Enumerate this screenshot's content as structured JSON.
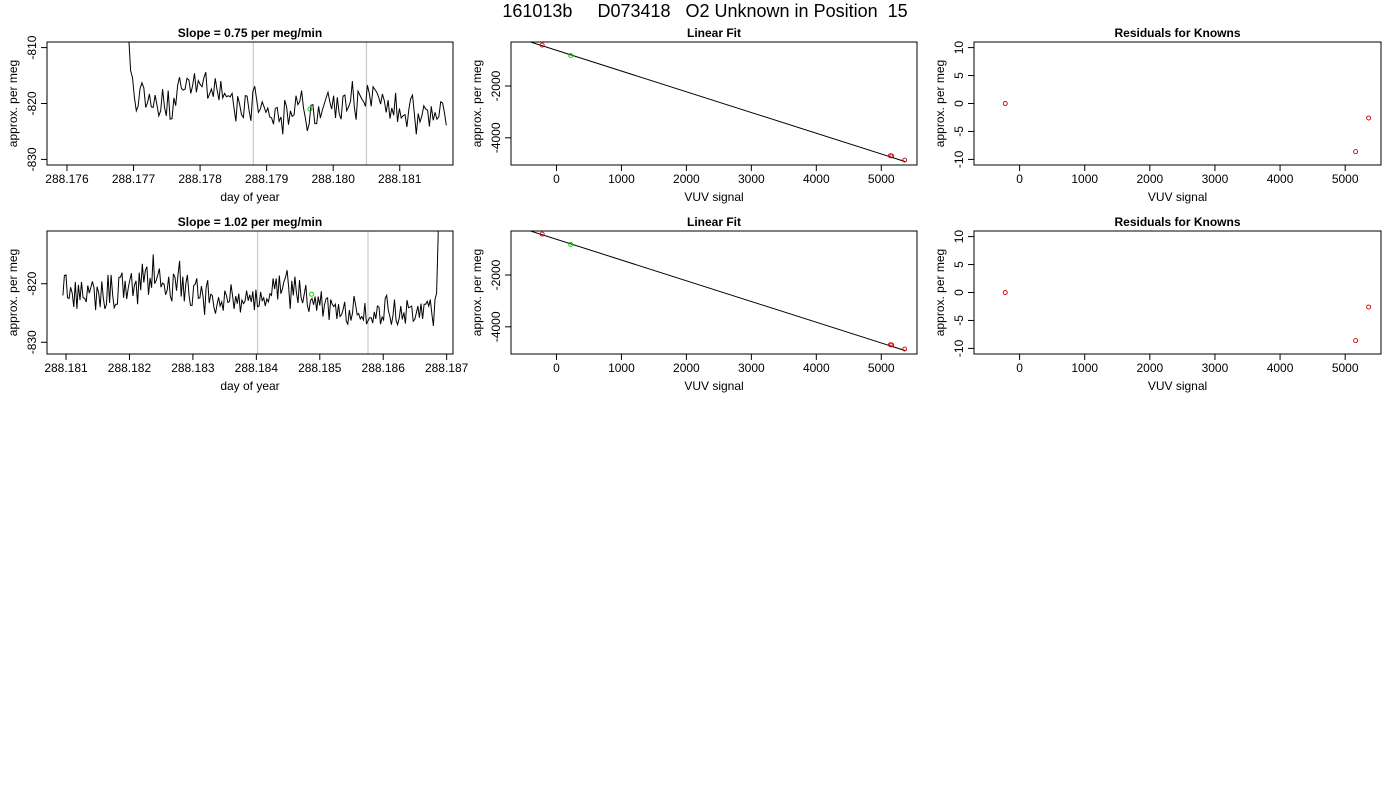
{
  "page": {
    "title": "161013b     D073418   O2 Unknown in Position  15"
  },
  "colors": {
    "axis": "#000000",
    "trace": "#000000",
    "fit_line": "#000000",
    "vline": "#c8c8c8",
    "known_marker": "#cc0000",
    "unknown_marker": "#00cc00"
  },
  "chart_data": [
    {
      "id": "trace1",
      "type": "line",
      "title": "Slope =  0.75  per meg/min",
      "xlabel": "day of year",
      "ylabel": "approx. per meg",
      "xlim": [
        288.1757,
        288.1818
      ],
      "ylim": [
        -831,
        -809
      ],
      "xticks": [
        288.176,
        288.177,
        288.178,
        288.179,
        288.18,
        288.181
      ],
      "xtick_labels": [
        "288.176",
        "288.177",
        "288.178",
        "288.179",
        "288.180",
        "288.181"
      ],
      "yticks": [
        -830,
        -820,
        -810
      ],
      "ytick_labels": [
        "-830",
        "-820",
        "-810"
      ],
      "vlines": [
        288.1788,
        288.1805
      ],
      "trace_x_start": 288.1769,
      "trace_x_end": 288.1817,
      "trace_y": [
        -790.0,
        -808.1,
        -814.1,
        -815.4,
        -818.9,
        -821.3,
        -820.5,
        -817.4,
        -816.3,
        -817.2,
        -820.7,
        -819.9,
        -818.3,
        -820.6,
        -820.7,
        -818.5,
        -820.2,
        -822.2,
        -821.3,
        -817.4,
        -820.7,
        -822.2,
        -817.7,
        -822.8,
        -822.7,
        -819.0,
        -820.4,
        -816.8,
        -815.3,
        -817.3,
        -817.6,
        -817.4,
        -815.5,
        -815.8,
        -818.2,
        -816.8,
        -814.6,
        -818.0,
        -815.9,
        -816.6,
        -817.0,
        -815.4,
        -814.4,
        -819.1,
        -818.3,
        -817.4,
        -818.8,
        -815.5,
        -817.6,
        -819.4,
        -816.0,
        -819.0,
        -818.2,
        -818.8,
        -818.6,
        -818.8,
        -818.2,
        -820.8,
        -823.2,
        -818.7,
        -820.1,
        -822.0,
        -822.5,
        -818.6,
        -818.7,
        -821.2,
        -823.1,
        -817.9,
        -816.9,
        -819.1,
        -821.6,
        -821.0,
        -819.7,
        -820.6,
        -821.6,
        -820.8,
        -822.4,
        -822.6,
        -823.7,
        -820.9,
        -820.7,
        -823.2,
        -822.4,
        -825.5,
        -819.4,
        -820.6,
        -823.8,
        -821.3,
        -822.3,
        -822.0,
        -818.6,
        -820.2,
        -819.6,
        -817.7,
        -820.8,
        -822.6,
        -824.9,
        -823.6,
        -820.3,
        -820.2,
        -823.6,
        -823.6,
        -820.5,
        -822.6,
        -821.2,
        -820.1,
        -819.0,
        -818.0,
        -819.7,
        -821.0,
        -818.6,
        -822.6,
        -818.9,
        -821.8,
        -822.8,
        -818.7,
        -818.5,
        -821.3,
        -820.6,
        -819.6,
        -816.0,
        -820.6,
        -822.9,
        -817.8,
        -818.5,
        -819.2,
        -819.7,
        -820.5,
        -816.7,
        -818.2,
        -820.5,
        -817.0,
        -817.5,
        -818.0,
        -818.9,
        -820.1,
        -818.3,
        -819.5,
        -821.6,
        -819.4,
        -822.7,
        -820.8,
        -822.1,
        -818.1,
        -823.3,
        -820.9,
        -822.6,
        -822.2,
        -822.0,
        -824.2,
        -821.1,
        -819.2,
        -818.5,
        -821.9,
        -825.5,
        -821.8,
        -823.3,
        -822.2,
        -820.4,
        -821.0,
        -821.2,
        -824.1,
        -820.5,
        -823.0,
        -821.6,
        -822.8,
        -822.4,
        -819.7,
        -819.9,
        -821.7,
        -823.9
      ],
      "markers": [
        {
          "x": 288.17965,
          "y": -821.0,
          "role": "unknown"
        }
      ]
    },
    {
      "id": "fit1",
      "type": "scatter",
      "title": "Linear Fit",
      "xlabel": "VUV signal",
      "ylabel": "approx. per meg",
      "xlim": [
        -700,
        5550
      ],
      "ylim": [
        -5050,
        -300
      ],
      "xticks": [
        0,
        1000,
        2000,
        3000,
        4000,
        5000
      ],
      "xtick_labels": [
        "0",
        "1000",
        "2000",
        "3000",
        "4000",
        "5000"
      ],
      "yticks": [
        -4000,
        -2000
      ],
      "ytick_labels": [
        "-4000",
        "-2000"
      ],
      "fit_line": {
        "x": [
          -500,
          5370
        ],
        "y": [
          -220,
          -4920
        ]
      },
      "points": [
        {
          "x": -220,
          "y": -420,
          "role": "known"
        },
        {
          "x": 220,
          "y": -820,
          "role": "unknown"
        },
        {
          "x": 5140,
          "y": -4690,
          "role": "known"
        },
        {
          "x": 5160,
          "y": -4700,
          "role": "known"
        },
        {
          "x": 5360,
          "y": -4860,
          "role": "known"
        }
      ]
    },
    {
      "id": "resid1",
      "type": "scatter",
      "title": "Residuals for Knowns",
      "xlabel": "VUV signal",
      "ylabel": "approx. per meg",
      "xlim": [
        -700,
        5550
      ],
      "ylim": [
        -11,
        11
      ],
      "xticks": [
        0,
        1000,
        2000,
        3000,
        4000,
        5000
      ],
      "xtick_labels": [
        "0",
        "1000",
        "2000",
        "3000",
        "4000",
        "5000"
      ],
      "yticks": [
        -10,
        -5,
        0,
        5,
        10
      ],
      "ytick_labels": [
        "-10",
        "-5",
        "0",
        "5",
        "10"
      ],
      "points": [
        {
          "x": -220,
          "y": 0.0,
          "role": "known"
        },
        {
          "x": 5160,
          "y": -8.6,
          "role": "known"
        },
        {
          "x": 5360,
          "y": -2.6,
          "role": "known"
        }
      ]
    },
    {
      "id": "trace2",
      "type": "line",
      "title": "Slope =  1.02  per meg/min",
      "xlabel": "day of year",
      "ylabel": "approx. per meg",
      "xlim": [
        288.1807,
        288.1871
      ],
      "ylim": [
        -832,
        -811
      ],
      "xticks": [
        288.181,
        288.182,
        288.183,
        288.184,
        288.185,
        288.186,
        288.187
      ],
      "xtick_labels": [
        "288.181",
        "288.182",
        "288.183",
        "288.184",
        "288.185",
        "288.186",
        "288.187"
      ],
      "yticks": [
        -830,
        -820
      ],
      "ytick_labels": [
        "-830",
        "-820"
      ],
      "vlines": [
        288.18402,
        288.18576
      ],
      "trace_x_start": 288.18095,
      "trace_x_end": 288.18689,
      "trace_y": [
        -822.0,
        -818.6,
        -818.5,
        -822.4,
        -822.5,
        -820.6,
        -821.6,
        -824.0,
        -819.7,
        -824.3,
        -820.2,
        -822.8,
        -819.7,
        -822.4,
        -822.5,
        -823.1,
        -820.3,
        -821.6,
        -820.6,
        -819.6,
        -820.7,
        -824.5,
        -820.5,
        -821.6,
        -824.0,
        -819.6,
        -822.4,
        -824.3,
        -823.5,
        -818.5,
        -823.3,
        -818.5,
        -822.0,
        -824.1,
        -823.5,
        -823.5,
        -818.9,
        -818.9,
        -818.1,
        -822.4,
        -819.5,
        -822.6,
        -820.7,
        -819.4,
        -818.2,
        -822.1,
        -820.2,
        -819.5,
        -823.5,
        -818.1,
        -821.1,
        -816.6,
        -819.8,
        -817.7,
        -817.1,
        -821.9,
        -819.0,
        -820.7,
        -815.0,
        -820.0,
        -819.4,
        -818.5,
        -817.4,
        -820.6,
        -819.9,
        -820.1,
        -821.9,
        -821.1,
        -818.8,
        -822.1,
        -823.0,
        -818.3,
        -818.9,
        -821.2,
        -818.3,
        -816.1,
        -822.2,
        -818.8,
        -823.0,
        -819.9,
        -818.5,
        -821.9,
        -823.7,
        -823.7,
        -820.3,
        -820.1,
        -819.1,
        -822.5,
        -822.4,
        -820.4,
        -822.1,
        -825.3,
        -820.7,
        -819.4,
        -823.3,
        -821.8,
        -822.0,
        -824.0,
        -825.1,
        -823.6,
        -822.3,
        -823.8,
        -823.1,
        -824.6,
        -821.2,
        -822.0,
        -823.2,
        -823.0,
        -820.1,
        -822.1,
        -824.3,
        -822.1,
        -823.4,
        -821.7,
        -824.9,
        -822.8,
        -823.4,
        -823.0,
        -821.2,
        -822.9,
        -821.9,
        -823.1,
        -821.3,
        -824.5,
        -821.0,
        -823.9,
        -823.8,
        -821.4,
        -822.9,
        -822.4,
        -823.8,
        -822.6,
        -823.1,
        -821.7,
        -822.0,
        -819.1,
        -820.9,
        -819.1,
        -822.7,
        -818.6,
        -821.7,
        -820.9,
        -819.6,
        -818.9,
        -817.7,
        -820.5,
        -824.3,
        -819.5,
        -822.0,
        -818.8,
        -821.5,
        -823.3,
        -819.4,
        -822.4,
        -823.3,
        -821.8,
        -820.2,
        -823.6,
        -824.8,
        -822.9,
        -822.5,
        -823.6,
        -822.2,
        -824.6,
        -822.2,
        -823.7,
        -821.3,
        -825.6,
        -823.6,
        -822.6,
        -822.4,
        -826.2,
        -822.7,
        -823.5,
        -823.9,
        -823.5,
        -826.0,
        -823.5,
        -825.6,
        -825.3,
        -824.4,
        -823.1,
        -826.4,
        -826.9,
        -824.5,
        -826.3,
        -825.0,
        -822.1,
        -823.6,
        -825.3,
        -825.1,
        -826.0,
        -825.6,
        -826.2,
        -823.3,
        -826.9,
        -826.3,
        -825.8,
        -825.8,
        -826.7,
        -824.8,
        -826.0,
        -823.8,
        -824.0,
        -826.9,
        -825.7,
        -826.2,
        -822.5,
        -822.0,
        -824.5,
        -825.6,
        -827.0,
        -825.4,
        -822.7,
        -826.3,
        -827.0,
        -825.9,
        -823.8,
        -826.1,
        -824.9,
        -826.8,
        -822.8,
        -824.1,
        -824.0,
        -823.8,
        -826.4,
        -826.1,
        -825.0,
        -823.8,
        -825.8,
        -823.4,
        -826.0,
        -823.5,
        -823.5,
        -823.0,
        -823.8,
        -822.7,
        -825.2,
        -827.2,
        -822.7,
        -821.6,
        -812.2,
        -796.0
      ],
      "markers": [
        {
          "x": 288.18487,
          "y": -821.8,
          "role": "unknown"
        }
      ]
    },
    {
      "id": "fit2",
      "type": "scatter",
      "title": "Linear Fit",
      "xlabel": "VUV signal",
      "ylabel": "approx. per meg",
      "xlim": [
        -700,
        5550
      ],
      "ylim": [
        -5050,
        -300
      ],
      "xticks": [
        0,
        1000,
        2000,
        3000,
        4000,
        5000
      ],
      "xtick_labels": [
        "0",
        "1000",
        "2000",
        "3000",
        "4000",
        "5000"
      ],
      "yticks": [
        -4000,
        -2000
      ],
      "ytick_labels": [
        "-4000",
        "-2000"
      ],
      "fit_line": {
        "x": [
          -500,
          5370
        ],
        "y": [
          -220,
          -4920
        ]
      },
      "points": [
        {
          "x": -220,
          "y": -420,
          "role": "known"
        },
        {
          "x": 220,
          "y": -820,
          "role": "unknown"
        },
        {
          "x": 5140,
          "y": -4690,
          "role": "known"
        },
        {
          "x": 5160,
          "y": -4700,
          "role": "known"
        },
        {
          "x": 5360,
          "y": -4860,
          "role": "known"
        }
      ]
    },
    {
      "id": "resid2",
      "type": "scatter",
      "title": "Residuals for Knowns",
      "xlabel": "VUV signal",
      "ylabel": "approx. per meg",
      "xlim": [
        -700,
        5550
      ],
      "ylim": [
        -11,
        11
      ],
      "xticks": [
        0,
        1000,
        2000,
        3000,
        4000,
        5000
      ],
      "xtick_labels": [
        "0",
        "1000",
        "2000",
        "3000",
        "4000",
        "5000"
      ],
      "yticks": [
        -10,
        -5,
        0,
        5,
        10
      ],
      "ytick_labels": [
        "-10",
        "-5",
        "0",
        "5",
        "10"
      ],
      "points": [
        {
          "x": -220,
          "y": 0.0,
          "role": "known"
        },
        {
          "x": 5160,
          "y": -8.6,
          "role": "known"
        },
        {
          "x": 5360,
          "y": -2.6,
          "role": "known"
        }
      ]
    }
  ]
}
